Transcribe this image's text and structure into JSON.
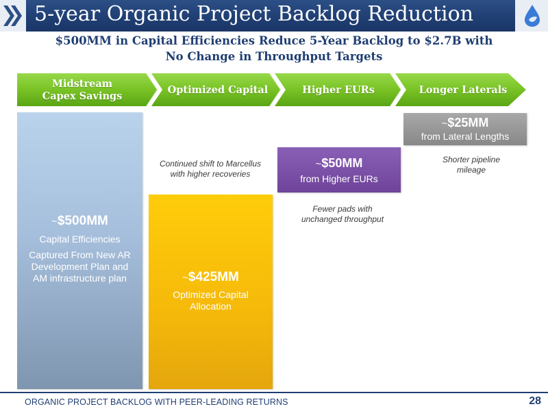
{
  "header": {
    "title": "5-year Organic Project Backlog Reduction",
    "icon": "double-chevron-icon",
    "logo": "water-drop-logo"
  },
  "subtitle": {
    "line1": "$500MM in Capital Efficiencies Reduce 5-Year Backlog to $2.7B with",
    "line2": "No Change in Throughput Targets"
  },
  "chevrons": [
    {
      "line1": "Midstream",
      "line2": "Capex Savings"
    },
    {
      "line1": "Optimized Capital",
      "line2": ""
    },
    {
      "line1": "Higher EURs",
      "line2": ""
    },
    {
      "line1": "Longer Laterals",
      "line2": ""
    }
  ],
  "boxes": {
    "total": {
      "tilde": "~",
      "amount": "$500MM",
      "label": "Capital Efficiencies",
      "description": "Captured From New AR Development Plan and AM infrastructure plan"
    },
    "optimized": {
      "tilde": "~",
      "amount": "$425MM",
      "label": "Optimized Capital Allocation",
      "note": "Continued shift to Marcellus with higher recoveries"
    },
    "eurs": {
      "tilde": "~",
      "amount": "$50MM",
      "label": "from Higher EURs",
      "note": "Fewer pads with unchanged throughput"
    },
    "laterals": {
      "tilde": "~",
      "amount": "$25MM",
      "label": "from Lateral Lengths",
      "note": "Shorter pipeline mileage"
    }
  },
  "footer": {
    "text": "ORGANIC PROJECT BACKLOG WITH PEER-LEADING RETURNS",
    "page": "28"
  },
  "colors": {
    "navy": "#1f3e72",
    "green": "#76c21e",
    "blue_box": "#a5bedb",
    "gold_box": "#f5b90a",
    "purple_box": "#7a4fa8",
    "grey_box": "#999999"
  }
}
